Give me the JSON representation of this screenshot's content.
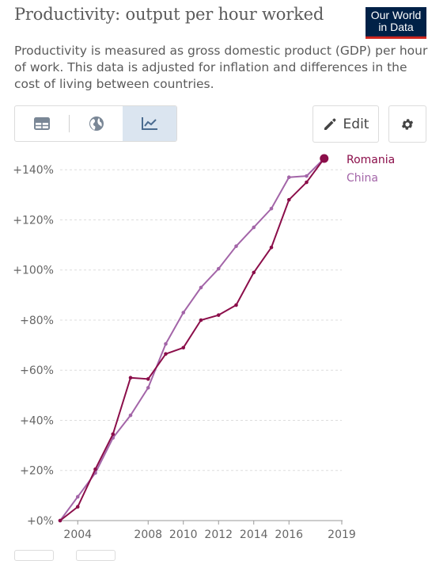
{
  "header": {
    "title": "Productivity: output per hour worked",
    "subtitle": "Productivity is measured as gross domestic product (GDP) per hour of work. This data is adjusted for inflation and differences in the cost of living between countries.",
    "logo_line1": "Our World",
    "logo_line2": "in Data"
  },
  "toolbar": {
    "table_icon": "table-icon",
    "map_icon": "globe-icon",
    "chart_icon": "line-chart-icon",
    "edit_label": "Edit",
    "settings_icon": "gear-icon"
  },
  "colors": {
    "romania": "#8b0e4a",
    "china": "#a365a8",
    "grid": "#dddddd",
    "active_tab": "#dbe5f0"
  },
  "chart_data": {
    "type": "line",
    "title": "Productivity: output per hour worked",
    "xlabel": "",
    "ylabel": "",
    "x_ticks": [
      "2004",
      "2008",
      "2010",
      "2012",
      "2014",
      "2016",
      "2019"
    ],
    "y_ticks": [
      "+0%",
      "+20%",
      "+40%",
      "+60%",
      "+80%",
      "+100%",
      "+120%",
      "+140%"
    ],
    "xlim": [
      2003,
      2019
    ],
    "ylim": [
      0,
      140
    ],
    "grid": true,
    "legend": "right-end labels",
    "x": [
      2003,
      2004,
      2005,
      2006,
      2007,
      2008,
      2009,
      2010,
      2011,
      2012,
      2013,
      2014,
      2015,
      2016,
      2017,
      2018,
      2019
    ],
    "series": [
      {
        "name": "Romania",
        "color": "#8b0e4a",
        "values": [
          0,
          5.5,
          20.5,
          34.5,
          57,
          56.5,
          66.5,
          69,
          80,
          82,
          86,
          99,
          109,
          128,
          135,
          144.5,
          null
        ]
      },
      {
        "name": "China",
        "color": "#a365a8",
        "values": [
          0,
          9.5,
          19,
          33,
          42,
          53,
          70.5,
          83,
          93,
          100.5,
          109.5,
          117,
          124.5,
          137,
          137.5,
          144.5,
          null
        ]
      }
    ]
  }
}
